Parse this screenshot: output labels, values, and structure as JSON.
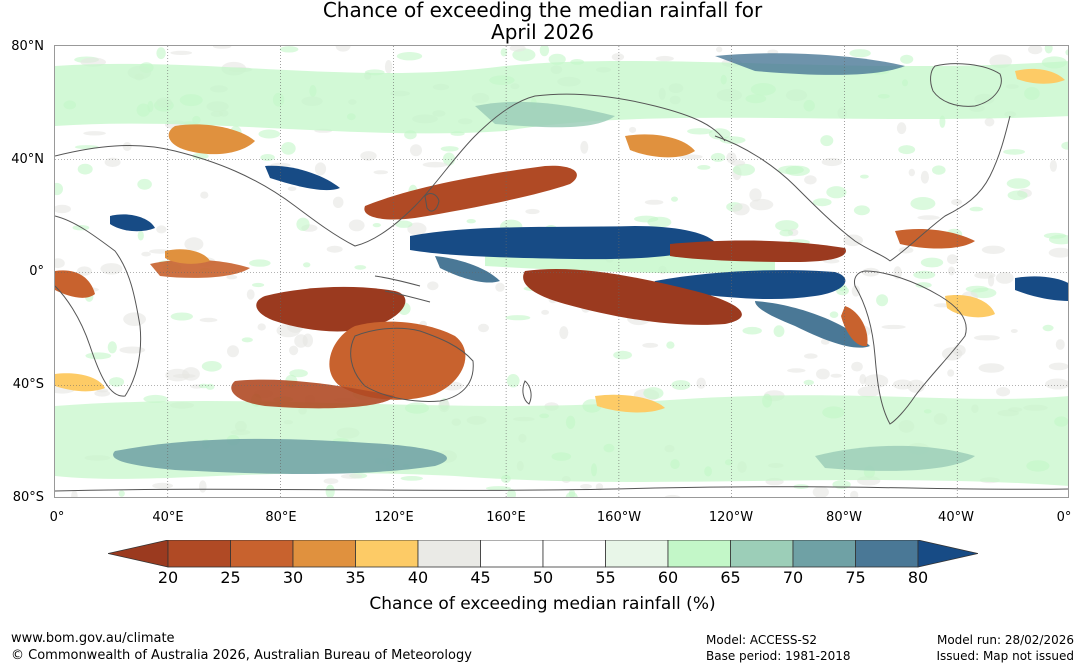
{
  "title": {
    "line1": "Chance of exceeding the median rainfall for",
    "line2": "April 2026"
  },
  "map": {
    "lat_labels": [
      "80°N",
      "40°N",
      "0°",
      "40°S",
      "80°S"
    ],
    "lon_labels": [
      "0°",
      "40°E",
      "80°E",
      "120°E",
      "160°E",
      "160°W",
      "120°W",
      "80°W",
      "40°W",
      "0°"
    ],
    "regions": [
      {
        "name": "equatorial-pacific-north",
        "cat": 12
      },
      {
        "name": "equatorial-pacific-south",
        "cat": 12
      },
      {
        "name": "east-pacific-north-dry",
        "cat": 1
      },
      {
        "name": "central-pacific-south-dry",
        "cat": 1
      },
      {
        "name": "indian-ocean-dry",
        "cat": 1
      },
      {
        "name": "australia-dry",
        "cat": 2
      },
      {
        "name": "north-pacific-dry",
        "cat": 2
      },
      {
        "name": "africa-west-dry",
        "cat": 2
      },
      {
        "name": "southern-ocean-wet",
        "cat": 10
      },
      {
        "name": "maritime-continent-wet",
        "cat": 11
      }
    ]
  },
  "colorbar": {
    "colors": [
      "#9b3a1f",
      "#b04a25",
      "#c8622e",
      "#e0913e",
      "#fdcb66",
      "#eaeae6",
      "#ffffff",
      "#ffffff",
      "#e8f6e8",
      "#c3f7c8",
      "#9cceb8",
      "#6fa1a5",
      "#4a7896",
      "#174b85"
    ],
    "ticks": [
      "20",
      "25",
      "30",
      "35",
      "40",
      "45",
      "50",
      "55",
      "60",
      "65",
      "70",
      "75",
      "80"
    ],
    "label": "Chance of exceeding median rainfall (%)"
  },
  "footer": {
    "url": "www.bom.gov.au/climate",
    "copyright": "© Commonwealth of Australia 2026, Australian Bureau of Meteorology",
    "model": "Model: ACCESS-S2",
    "base_period": "Base period: 1981-2018",
    "model_run": "Model run: 28/02/2026",
    "issued": "Issued: Map not issued"
  }
}
